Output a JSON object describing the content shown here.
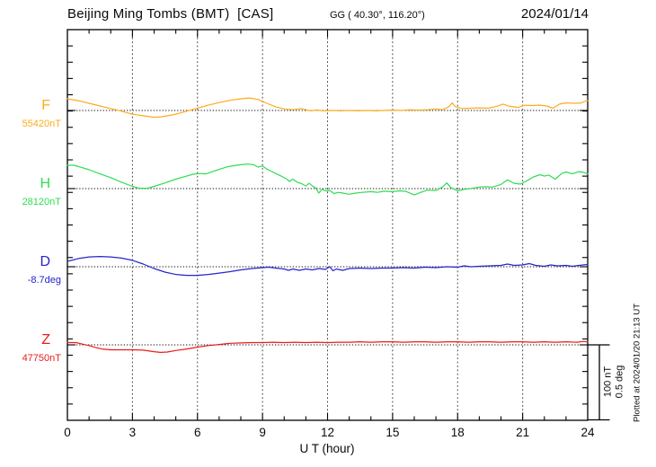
{
  "header": {
    "title": "Beijing Ming Tombs (BMT)  [CAS]",
    "coords": "GG ( 40.30°, 116.20°)",
    "date": "2024/01/14"
  },
  "chart_data": {
    "type": "line",
    "title": "Beijing Ming Tombs (BMT)  [CAS]",
    "xlabel": "U T (hour)",
    "x_range": [
      0,
      24
    ],
    "x_ticks": [
      0,
      3,
      6,
      9,
      12,
      15,
      18,
      21,
      24
    ],
    "grid_hours": [
      3,
      6,
      9,
      12,
      15,
      18,
      21
    ],
    "grid_on": true,
    "scale_bar": {
      "labels": [
        "100 nT",
        "0.5 deg"
      ],
      "nT": 100,
      "deg": 0.5
    },
    "plotted_at": "Plotted at 2024/01/20 21:13 UT",
    "series": [
      {
        "name": "F",
        "baseline_label": "55420nT",
        "baseline_value": 55420,
        "unit": "nT",
        "color": "#fbac1e",
        "points": [
          [
            0,
            15.5
          ],
          [
            0.5,
            13
          ],
          [
            1,
            9.5
          ],
          [
            1.5,
            6
          ],
          [
            2,
            2.5
          ],
          [
            2.5,
            -1
          ],
          [
            3,
            -5
          ],
          [
            3.5,
            -7
          ],
          [
            4,
            -9
          ],
          [
            4.3,
            -8.5
          ],
          [
            4.7,
            -6.5
          ],
          [
            5,
            -5
          ],
          [
            5.5,
            -1
          ],
          [
            6,
            3
          ],
          [
            6.5,
            7
          ],
          [
            7,
            10.5
          ],
          [
            7.5,
            13.5
          ],
          [
            8,
            15.5
          ],
          [
            8.4,
            16.5
          ],
          [
            8.8,
            14.5
          ],
          [
            9.2,
            9.5
          ],
          [
            9.6,
            5
          ],
          [
            10,
            2
          ],
          [
            10.4,
            1
          ],
          [
            10.8,
            2.5
          ],
          [
            11.2,
            -0.5
          ],
          [
            11.5,
            0.5
          ],
          [
            11.8,
            -0.5
          ],
          [
            12.2,
            0
          ],
          [
            12.6,
            -0.5
          ],
          [
            13,
            0
          ],
          [
            13.4,
            -0.5
          ],
          [
            13.8,
            0
          ],
          [
            14.2,
            -0.5
          ],
          [
            14.6,
            0
          ],
          [
            15,
            0.5
          ],
          [
            15.4,
            0
          ],
          [
            15.8,
            1
          ],
          [
            16.2,
            0.5
          ],
          [
            16.6,
            1
          ],
          [
            17,
            2
          ],
          [
            17.3,
            1
          ],
          [
            17.6,
            5
          ],
          [
            17.75,
            10
          ],
          [
            17.9,
            5
          ],
          [
            18.2,
            2.5
          ],
          [
            18.6,
            3
          ],
          [
            19,
            3.5
          ],
          [
            19.4,
            3
          ],
          [
            19.8,
            5.5
          ],
          [
            20.1,
            8.5
          ],
          [
            20.4,
            5.5
          ],
          [
            20.8,
            4
          ],
          [
            21.1,
            7
          ],
          [
            21.4,
            6.5
          ],
          [
            21.8,
            7
          ],
          [
            22.1,
            6
          ],
          [
            22.4,
            3
          ],
          [
            22.7,
            8.5
          ],
          [
            23,
            10
          ],
          [
            23.4,
            9.5
          ],
          [
            23.7,
            10
          ],
          [
            23.9,
            12.5
          ],
          [
            24,
            13
          ]
        ]
      },
      {
        "name": "H",
        "baseline_label": "28120nT",
        "baseline_value": 28120,
        "unit": "nT",
        "color": "#2fdd52",
        "points": [
          [
            0,
            31
          ],
          [
            0.3,
            31
          ],
          [
            0.6,
            28.5
          ],
          [
            1,
            25
          ],
          [
            1.5,
            19.5
          ],
          [
            2,
            14.5
          ],
          [
            2.5,
            8.5
          ],
          [
            3,
            3
          ],
          [
            3.3,
            0.5
          ],
          [
            3.7,
            0.5
          ],
          [
            4,
            3
          ],
          [
            4.5,
            7.5
          ],
          [
            5,
            12.5
          ],
          [
            5.5,
            16.5
          ],
          [
            5.8,
            19
          ],
          [
            6.1,
            20
          ],
          [
            6.4,
            19.5
          ],
          [
            6.7,
            22.5
          ],
          [
            7,
            25.5
          ],
          [
            7.4,
            29
          ],
          [
            7.8,
            31
          ],
          [
            8.1,
            32
          ],
          [
            8.35,
            32.5
          ],
          [
            8.6,
            31.5
          ],
          [
            8.8,
            28.5
          ],
          [
            9,
            30
          ],
          [
            9.2,
            26
          ],
          [
            9.5,
            21.5
          ],
          [
            9.8,
            17.5
          ],
          [
            10.1,
            13
          ],
          [
            10.25,
            9.5
          ],
          [
            10.4,
            12.5
          ],
          [
            10.6,
            8.5
          ],
          [
            10.8,
            6.5
          ],
          [
            11,
            3.5
          ],
          [
            11.15,
            7
          ],
          [
            11.3,
            3.5
          ],
          [
            11.45,
            1
          ],
          [
            11.6,
            -6
          ],
          [
            11.75,
            -1
          ],
          [
            11.9,
            -3
          ],
          [
            12.1,
            -2.5
          ],
          [
            12.3,
            -6.5
          ],
          [
            12.5,
            -5
          ],
          [
            12.7,
            -6
          ],
          [
            13,
            -7.5
          ],
          [
            13.3,
            -6
          ],
          [
            13.6,
            -5
          ],
          [
            14,
            -4
          ],
          [
            14.3,
            -5
          ],
          [
            14.6,
            -3.5
          ],
          [
            15,
            -4
          ],
          [
            15.3,
            -3
          ],
          [
            15.6,
            -3.5
          ],
          [
            16,
            -8.5
          ],
          [
            16.3,
            -5
          ],
          [
            16.6,
            -2
          ],
          [
            17,
            -2.5
          ],
          [
            17.3,
            2
          ],
          [
            17.5,
            7.5
          ],
          [
            17.7,
            1
          ],
          [
            18,
            -3
          ],
          [
            18.3,
            -1
          ],
          [
            18.6,
            0
          ],
          [
            19,
            2
          ],
          [
            19.3,
            2.5
          ],
          [
            19.6,
            2
          ],
          [
            20,
            5.5
          ],
          [
            20.3,
            11.5
          ],
          [
            20.6,
            7
          ],
          [
            20.9,
            6
          ],
          [
            21.2,
            10.5
          ],
          [
            21.5,
            15.5
          ],
          [
            21.8,
            18.5
          ],
          [
            22,
            16.5
          ],
          [
            22.2,
            18
          ],
          [
            22.5,
            12.5
          ],
          [
            22.8,
            20
          ],
          [
            23,
            22
          ],
          [
            23.3,
            19.5
          ],
          [
            23.6,
            22.5
          ],
          [
            23.8,
            21.5
          ],
          [
            24,
            19.5
          ]
        ]
      },
      {
        "name": "D",
        "baseline_label": "-8.7deg",
        "baseline_value": -8.7,
        "unit": "deg",
        "color": "#2424cf",
        "points": [
          [
            0,
            0.036
          ],
          [
            0.5,
            0.054
          ],
          [
            1,
            0.065
          ],
          [
            1.5,
            0.068
          ],
          [
            2,
            0.065
          ],
          [
            2.5,
            0.057
          ],
          [
            3,
            0.042
          ],
          [
            3.5,
            0.018
          ],
          [
            4,
            -0.012
          ],
          [
            4.5,
            -0.036
          ],
          [
            5,
            -0.051
          ],
          [
            5.5,
            -0.057
          ],
          [
            6,
            -0.057
          ],
          [
            6.5,
            -0.051
          ],
          [
            7,
            -0.042
          ],
          [
            7.5,
            -0.033
          ],
          [
            8,
            -0.021
          ],
          [
            8.5,
            -0.012
          ],
          [
            9,
            -0.006
          ],
          [
            9.3,
            -0.003
          ],
          [
            9.6,
            -0.009
          ],
          [
            10,
            -0.015
          ],
          [
            10.2,
            -0.024
          ],
          [
            10.4,
            -0.015
          ],
          [
            10.7,
            -0.024
          ],
          [
            11,
            -0.015
          ],
          [
            11.3,
            -0.021
          ],
          [
            11.6,
            -0.012
          ],
          [
            11.9,
            -0.018
          ],
          [
            12.1,
            0
          ],
          [
            12.25,
            -0.027
          ],
          [
            12.4,
            -0.015
          ],
          [
            12.7,
            -0.024
          ],
          [
            13,
            -0.012
          ],
          [
            13.5,
            -0.009
          ],
          [
            14,
            -0.012
          ],
          [
            14.5,
            -0.009
          ],
          [
            15,
            -0.009
          ],
          [
            15.5,
            -0.006
          ],
          [
            16,
            -0.009
          ],
          [
            16.5,
            -0.003
          ],
          [
            17,
            -0.006
          ],
          [
            17.5,
            0
          ],
          [
            18,
            -0.003
          ],
          [
            18.3,
            0.006
          ],
          [
            18.6,
            0
          ],
          [
            19,
            0.003
          ],
          [
            19.5,
            0.006
          ],
          [
            20,
            0.009
          ],
          [
            20.3,
            0.018
          ],
          [
            20.6,
            0.009
          ],
          [
            21,
            0.012
          ],
          [
            21.3,
            0.021
          ],
          [
            21.6,
            0.009
          ],
          [
            22,
            0.003
          ],
          [
            22.3,
            0.012
          ],
          [
            22.6,
            0.006
          ],
          [
            23,
            0.009
          ],
          [
            23.3,
            0.003
          ],
          [
            23.6,
            0.009
          ],
          [
            24,
            0.015
          ]
        ]
      },
      {
        "name": "Z",
        "baseline_label": "47750nT",
        "baseline_value": 47750,
        "unit": "nT",
        "color": "#ec1a1a",
        "points": [
          [
            0,
            3
          ],
          [
            0.4,
            3
          ],
          [
            0.7,
            1
          ],
          [
            1,
            -1
          ],
          [
            1.3,
            -3.5
          ],
          [
            1.6,
            -5.5
          ],
          [
            2,
            -6.5
          ],
          [
            2.5,
            -6.5
          ],
          [
            3,
            -6.5
          ],
          [
            3.5,
            -7
          ],
          [
            4,
            -9
          ],
          [
            4.3,
            -10
          ],
          [
            4.6,
            -9.5
          ],
          [
            5,
            -7.5
          ],
          [
            5.5,
            -5.5
          ],
          [
            6,
            -3
          ],
          [
            6.5,
            -1
          ],
          [
            7,
            0.5
          ],
          [
            7.5,
            2
          ],
          [
            8,
            2.5
          ],
          [
            8.5,
            3
          ],
          [
            9,
            3
          ],
          [
            9.5,
            3.5
          ],
          [
            10,
            3
          ],
          [
            10.5,
            3.5
          ],
          [
            11,
            3
          ],
          [
            11.5,
            3.5
          ],
          [
            12,
            3
          ],
          [
            12.5,
            3.5
          ],
          [
            13,
            3.5
          ],
          [
            13.5,
            4
          ],
          [
            14,
            3.5
          ],
          [
            14.5,
            4
          ],
          [
            15,
            4
          ],
          [
            15.5,
            3.5
          ],
          [
            16,
            4
          ],
          [
            16.5,
            4
          ],
          [
            17,
            3.5
          ],
          [
            17.5,
            4
          ],
          [
            18,
            4
          ],
          [
            18.5,
            3.5
          ],
          [
            19,
            4
          ],
          [
            19.5,
            4
          ],
          [
            20,
            3.5
          ],
          [
            20.5,
            4
          ],
          [
            21,
            4
          ],
          [
            21.5,
            3.5
          ],
          [
            22,
            4
          ],
          [
            22.5,
            3.5
          ],
          [
            23,
            4
          ],
          [
            23.5,
            3.5
          ],
          [
            23.8,
            4.5
          ],
          [
            24,
            4
          ]
        ]
      }
    ]
  }
}
